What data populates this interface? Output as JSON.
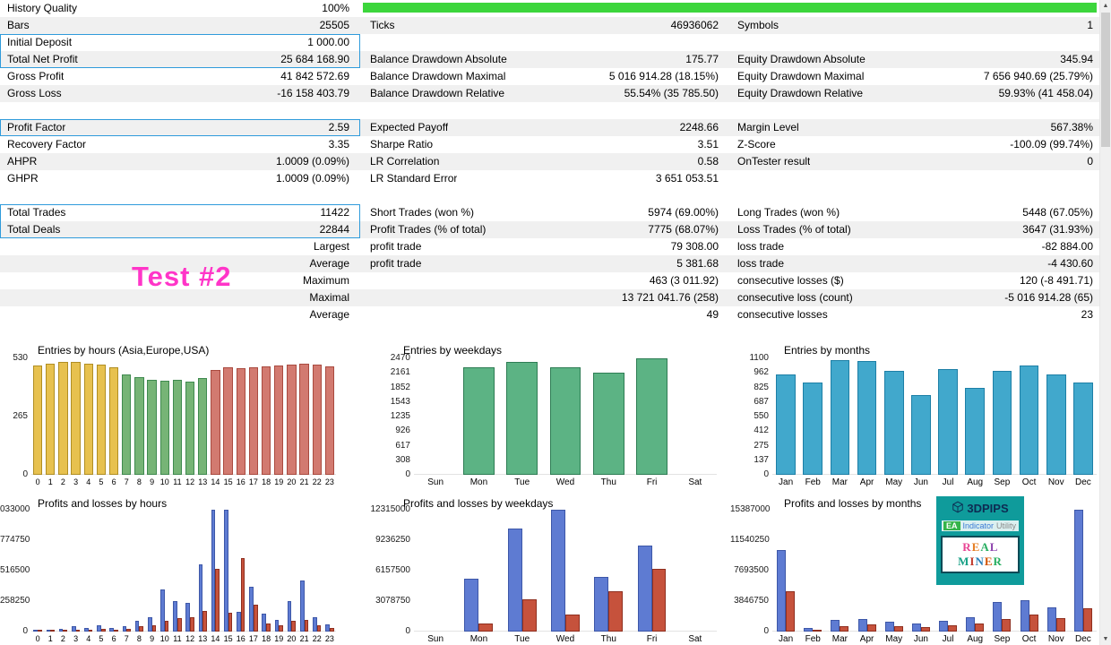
{
  "stats": {
    "rows": [
      {
        "l": "History Quality",
        "lv": "100%",
        "m": "",
        "mv": "",
        "r": "",
        "rv": "",
        "s": 0
      },
      {
        "l": "Bars",
        "lv": "25505",
        "m": "Ticks",
        "mv": "46936062",
        "r": "Symbols",
        "rv": "1",
        "s": 1
      },
      {
        "l": "Initial Deposit",
        "lv": "1 000.00",
        "m": "",
        "mv": "",
        "r": "",
        "rv": "",
        "s": 0
      },
      {
        "l": "Total Net Profit",
        "lv": "25 684 168.90",
        "m": "Balance Drawdown Absolute",
        "mv": "175.77",
        "r": "Equity Drawdown Absolute",
        "rv": "345.94",
        "s": 1
      },
      {
        "l": "Gross Profit",
        "lv": "41 842 572.69",
        "m": "Balance Drawdown Maximal",
        "mv": "5 016 914.28 (18.15%)",
        "r": "Equity Drawdown Maximal",
        "rv": "7 656 940.69 (25.79%)",
        "s": 0
      },
      {
        "l": "Gross Loss",
        "lv": "-16 158 403.79",
        "m": "Balance Drawdown Relative",
        "mv": "55.54% (35 785.50)",
        "r": "Equity Drawdown Relative",
        "rv": "59.93% (41 458.04)",
        "s": 1
      },
      {
        "l": "",
        "lv": "",
        "m": "",
        "mv": "",
        "r": "",
        "rv": "",
        "s": 0
      },
      {
        "l": "Profit Factor",
        "lv": "2.59",
        "m": "Expected Payoff",
        "mv": "2248.66",
        "r": "Margin Level",
        "rv": "567.38%",
        "s": 1
      },
      {
        "l": "Recovery Factor",
        "lv": "3.35",
        "m": "Sharpe Ratio",
        "mv": "3.51",
        "r": "Z-Score",
        "rv": "-100.09 (99.74%)",
        "s": 0
      },
      {
        "l": "AHPR",
        "lv": "1.0009 (0.09%)",
        "m": "LR Correlation",
        "mv": "0.58",
        "r": "OnTester result",
        "rv": "0",
        "s": 1
      },
      {
        "l": "GHPR",
        "lv": "1.0009 (0.09%)",
        "m": "LR Standard Error",
        "mv": "3 651 053.51",
        "r": "",
        "rv": "",
        "s": 0
      },
      {
        "l": "",
        "lv": "",
        "m": "",
        "mv": "",
        "r": "",
        "rv": "",
        "s": 0
      },
      {
        "l": "Total Trades",
        "lv": "11422",
        "m": "Short Trades (won %)",
        "mv": "5974 (69.00%)",
        "r": "Long Trades (won %)",
        "rv": "5448 (67.05%)",
        "s": 0
      },
      {
        "l": "Total Deals",
        "lv": "22844",
        "m": "Profit Trades (% of total)",
        "mv": "7775 (68.07%)",
        "r": "Loss Trades (% of total)",
        "rv": "3647 (31.93%)",
        "s": 1
      },
      {
        "l": "",
        "lv": "Largest",
        "m": "profit trade",
        "mv": "79 308.00",
        "r": "loss trade",
        "rv": "-82 884.00",
        "s": 0
      },
      {
        "l": "",
        "lv": "Average",
        "m": "profit trade",
        "mv": "5 381.68",
        "r": "loss trade",
        "rv": "-4 430.60",
        "s": 1
      },
      {
        "l": "",
        "lv": "Maximum",
        "m": "",
        "mv": "463 (3 011.92)",
        "r": "consecutive losses ($)",
        "rv": "120 (-8 491.71)",
        "s": 0
      },
      {
        "l": "",
        "lv": "Maximal",
        "m": "",
        "mv": "13 721 041.76 (258)",
        "r": "consecutive loss (count)",
        "rv": "-5 016 914.28 (65)",
        "s": 1
      },
      {
        "l": "",
        "lv": "Average",
        "m": "",
        "mv": "49",
        "r": "consecutive losses",
        "rv": "23",
        "s": 0
      }
    ],
    "highlight_boxes": [
      {
        "row": 2,
        "span": 2
      },
      {
        "row": 7,
        "span": 1
      },
      {
        "row": 12,
        "span": 2
      }
    ]
  },
  "watermark": {
    "text": "Test #2"
  },
  "scrollbar": {
    "up_icon": "▲",
    "down_icon": "▼"
  },
  "colors": {
    "stripe": "#f0f0f0",
    "highlight_border": "#2f9bdb",
    "progress_green": "#3cd63c",
    "watermark_pink": "#ff35c8"
  },
  "chart_data": [
    {
      "id": "entries-by-hours",
      "type": "bar",
      "title": "Entries by hours (Asia,Europe,USA)",
      "max": 530,
      "ticks": [
        {
          "v": 530,
          "t": "530"
        },
        {
          "v": 265,
          "t": "265"
        },
        {
          "v": 0,
          "t": "0"
        }
      ],
      "categories": [
        "0",
        "1",
        "2",
        "3",
        "4",
        "5",
        "6",
        "7",
        "8",
        "9",
        "10",
        "11",
        "12",
        "13",
        "14",
        "15",
        "16",
        "17",
        "18",
        "19",
        "20",
        "21",
        "22",
        "23"
      ],
      "values": [
        498,
        505,
        512,
        515,
        506,
        500,
        490,
        458,
        444,
        432,
        428,
        431,
        426,
        442,
        478,
        488,
        484,
        488,
        493,
        498,
        500,
        504,
        500,
        495
      ],
      "bar_colors": [
        "#e7c14f",
        "#e7c14f",
        "#e7c14f",
        "#e7c14f",
        "#e7c14f",
        "#e7c14f",
        "#e7c14f",
        "#76b476",
        "#76b476",
        "#76b476",
        "#76b476",
        "#76b476",
        "#76b476",
        "#76b476",
        "#d27a70",
        "#d27a70",
        "#d27a70",
        "#d27a70",
        "#d27a70",
        "#d27a70",
        "#d27a70",
        "#d27a70",
        "#d27a70",
        "#d27a70"
      ],
      "bar_borders": [
        "#b08e23",
        "#b08e23",
        "#b08e23",
        "#b08e23",
        "#b08e23",
        "#b08e23",
        "#b08e23",
        "#3f8a4f",
        "#3f8a4f",
        "#3f8a4f",
        "#3f8a4f",
        "#3f8a4f",
        "#3f8a4f",
        "#3f8a4f",
        "#a94a3f",
        "#a94a3f",
        "#a94a3f",
        "#a94a3f",
        "#a94a3f",
        "#a94a3f",
        "#a94a3f",
        "#a94a3f",
        "#a94a3f",
        "#a94a3f"
      ]
    },
    {
      "id": "entries-by-weekdays",
      "type": "bar",
      "title": "Entries by weekdays",
      "max": 2470,
      "ticks": [
        {
          "v": 2470,
          "t": "2470"
        },
        {
          "v": 2161,
          "t": "2161"
        },
        {
          "v": 1852,
          "t": "1852"
        },
        {
          "v": 1543,
          "t": "1543"
        },
        {
          "v": 1235,
          "t": "1235"
        },
        {
          "v": 926,
          "t": "926"
        },
        {
          "v": 617,
          "t": "617"
        },
        {
          "v": 308,
          "t": "308"
        },
        {
          "v": 0,
          "t": "0"
        }
      ],
      "categories": [
        "Sun",
        "Mon",
        "Tue",
        "Wed",
        "Thu",
        "Fri",
        "Sat"
      ],
      "values": [
        0,
        2280,
        2390,
        2280,
        2160,
        2470,
        0
      ],
      "color": "#5cb384",
      "border": "#2e7d54"
    },
    {
      "id": "entries-by-months",
      "type": "bar",
      "title": "Entries by months",
      "max": 1100,
      "ticks": [
        {
          "v": 1100,
          "t": "1100"
        },
        {
          "v": 962,
          "t": "962"
        },
        {
          "v": 825,
          "t": "825"
        },
        {
          "v": 687,
          "t": "687"
        },
        {
          "v": 550,
          "t": "550"
        },
        {
          "v": 412,
          "t": "412"
        },
        {
          "v": 275,
          "t": "275"
        },
        {
          "v": 137,
          "t": "137"
        },
        {
          "v": 0,
          "t": "0"
        }
      ],
      "categories": [
        "Jan",
        "Feb",
        "Mar",
        "Apr",
        "May",
        "Jun",
        "Jul",
        "Aug",
        "Sep",
        "Oct",
        "Nov",
        "Dec"
      ],
      "values": [
        950,
        870,
        1085,
        1075,
        980,
        755,
        995,
        820,
        985,
        1030,
        950,
        870
      ],
      "color": "#41a8cc",
      "border": "#1d7fa6"
    },
    {
      "id": "pnl-by-hours",
      "type": "bar",
      "title": "Profits and losses by hours",
      "max": 1033000,
      "ticks": [
        {
          "v": 1033000,
          "t": "033000"
        },
        {
          "v": 774750,
          "t": "774750"
        },
        {
          "v": 516500,
          "t": "516500"
        },
        {
          "v": 258250,
          "t": "258250"
        },
        {
          "v": 0,
          "t": "0"
        }
      ],
      "categories": [
        "0",
        "1",
        "2",
        "3",
        "4",
        "5",
        "6",
        "7",
        "8",
        "9",
        "10",
        "11",
        "12",
        "13",
        "14",
        "15",
        "16",
        "17",
        "18",
        "19",
        "20",
        "21",
        "22",
        "23"
      ],
      "series": [
        {
          "name": "profit",
          "color": "#5e7bd2",
          "border": "#3d57a8",
          "values": [
            18000,
            15000,
            22000,
            48000,
            30000,
            52000,
            30000,
            45000,
            90000,
            120000,
            360000,
            260000,
            240000,
            570000,
            1100000,
            1100000,
            170000,
            380000,
            150000,
            100000,
            260000,
            430000,
            120000,
            60000
          ]
        },
        {
          "name": "loss",
          "color": "#c6523c",
          "border": "#8f2f1f",
          "values": [
            8000,
            7000,
            10000,
            18000,
            12000,
            22000,
            14000,
            20000,
            45000,
            55000,
            90000,
            115000,
            125000,
            175000,
            530000,
            160000,
            620000,
            230000,
            70000,
            50000,
            90000,
            100000,
            50000,
            30000
          ]
        }
      ]
    },
    {
      "id": "pnl-by-weekdays",
      "type": "bar",
      "title": "Profits and losses by weekdays",
      "max": 12315000,
      "ticks": [
        {
          "v": 12315000,
          "t": "12315000"
        },
        {
          "v": 9236250,
          "t": "9236250"
        },
        {
          "v": 6157500,
          "t": "6157500"
        },
        {
          "v": 3078750,
          "t": "3078750"
        },
        {
          "v": 0,
          "t": "0"
        }
      ],
      "categories": [
        "Sun",
        "Mon",
        "Tue",
        "Wed",
        "Thu",
        "Fri",
        "Sat"
      ],
      "series": [
        {
          "name": "profit",
          "color": "#5e7bd2",
          "border": "#3d57a8",
          "values": [
            0,
            5300000,
            10400000,
            12315000,
            5500000,
            8700000,
            0
          ]
        },
        {
          "name": "loss",
          "color": "#c6523c",
          "border": "#8f2f1f",
          "values": [
            0,
            800000,
            3300000,
            1750000,
            4100000,
            6300000,
            0
          ]
        }
      ]
    },
    {
      "id": "pnl-by-months",
      "type": "bar",
      "title": "Profits and losses by months",
      "max": 15387000,
      "ticks": [
        {
          "v": 15387000,
          "t": "15387000"
        },
        {
          "v": 11540250,
          "t": "11540250"
        },
        {
          "v": 7693500,
          "t": "7693500"
        },
        {
          "v": 3846750,
          "t": "3846750"
        },
        {
          "v": 0,
          "t": "0"
        }
      ],
      "categories": [
        "Jan",
        "Feb",
        "Mar",
        "Apr",
        "May",
        "Jun",
        "Jul",
        "Aug",
        "Sep",
        "Oct",
        "Nov",
        "Dec"
      ],
      "series": [
        {
          "name": "profit",
          "color": "#5e7bd2",
          "border": "#3d57a8",
          "values": [
            10300000,
            450000,
            1500000,
            1600000,
            1200000,
            1000000,
            1400000,
            1800000,
            3700000,
            4000000,
            3000000,
            15387000
          ]
        },
        {
          "name": "loss",
          "color": "#c6523c",
          "border": "#8f2f1f",
          "values": [
            5100000,
            280000,
            700000,
            950000,
            650000,
            550000,
            800000,
            1000000,
            1600000,
            2100000,
            1700000,
            2900000
          ]
        }
      ]
    }
  ],
  "logo": {
    "brand": "3DPIPS",
    "badge": "EA",
    "word1": "Indicator",
    "word2": "Utility",
    "name": "REAL MINER",
    "bg": "#0f9b9b",
    "brand_color": "#0d2b52",
    "badge_bg": "#35b44a",
    "word1_color": "#3a7bd5",
    "word2_color": "#8a8a8a",
    "letter_colors": [
      "#e84393",
      "#e67e22",
      "#27ae60",
      "#8e44ad",
      "#16a085",
      "#c0392b",
      "#2980b9",
      "#d35400",
      "#27ae60"
    ]
  }
}
